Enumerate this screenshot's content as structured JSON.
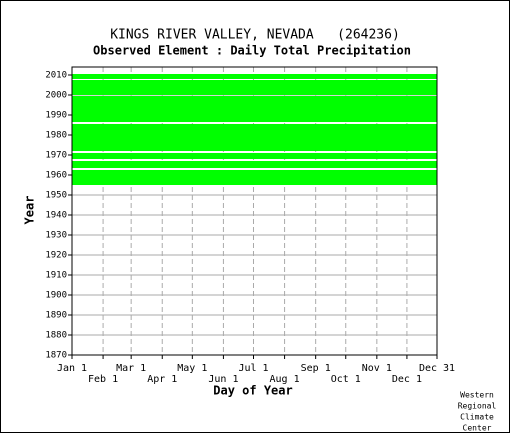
{
  "chart_data": {
    "type": "availability",
    "title": "KINGS RIVER VALLEY, NEVADA   (264236)",
    "subtitle": "Observed Element : Daily Total Precipitation",
    "x_label": "Day of Year",
    "y_label": "Year",
    "credit": [
      "Western",
      "Regional",
      "Climate",
      "Center"
    ],
    "color": "#00ff00",
    "grid": true,
    "xlim": [
      1,
      365
    ],
    "xticks": [
      {
        "value": 1,
        "label": "Jan 1"
      },
      {
        "value": 32,
        "label": "Feb 1"
      },
      {
        "value": 60,
        "label": "Mar 1"
      },
      {
        "value": 91,
        "label": "Apr 1"
      },
      {
        "value": 121,
        "label": "May 1"
      },
      {
        "value": 152,
        "label": "Jun 1"
      },
      {
        "value": 182,
        "label": "Jul 1"
      },
      {
        "value": 213,
        "label": "Aug 1"
      },
      {
        "value": 244,
        "label": "Sep 1"
      },
      {
        "value": 274,
        "label": "Oct 1"
      },
      {
        "value": 305,
        "label": "Nov 1"
      },
      {
        "value": 335,
        "label": "Dec 1"
      },
      {
        "value": 365,
        "label": "Dec 31"
      }
    ],
    "ylim": [
      1870,
      2014
    ],
    "yticks": [
      1870,
      1880,
      1890,
      1900,
      1910,
      1920,
      1930,
      1940,
      1950,
      1960,
      1970,
      1980,
      1990,
      2000,
      2010
    ],
    "segments": [
      {
        "x": [
          1,
          365
        ],
        "y": [
          1955,
          1962.5
        ]
      },
      {
        "x": [
          1,
          365
        ],
        "y": [
          1963.5,
          1967
        ]
      },
      {
        "x": [
          1,
          365
        ],
        "y": [
          1968,
          1971
        ]
      },
      {
        "x": [
          1,
          365
        ],
        "y": [
          1972,
          1985.5
        ]
      },
      {
        "x": [
          1,
          365
        ],
        "y": [
          1986.5,
          1999.5
        ]
      },
      {
        "x": [
          1,
          365
        ],
        "y": [
          2000,
          2007.5
        ]
      },
      {
        "x": [
          1,
          365
        ],
        "y": [
          2008,
          2010.5
        ]
      }
    ]
  }
}
